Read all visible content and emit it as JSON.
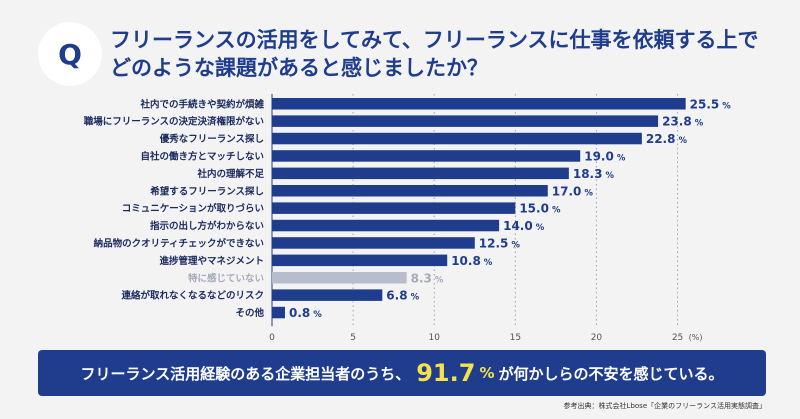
{
  "header": {
    "q_letter": "Q",
    "question_line1": "フリーランスの活用をしてみて、フリーランスに仕事を依頼する上で",
    "question_line2": "どのような課題があると感じましたか？"
  },
  "chart_data": {
    "type": "bar",
    "orientation": "horizontal",
    "categories": [
      "社内での手続きや契約が煩雑",
      "職場にフリーランスの決定決済権限がない",
      "優秀なフリーランス探し",
      "自社の働き方とマッチしない",
      "社内の理解不足",
      "希望するフリーランス探し",
      "コミュニケーションが取りづらい",
      "指示の出し方がわからない",
      "納品物のクオリティチェックができない",
      "進捗管理やマネジメント",
      "特に感じていない",
      "連絡が取れなくなるなどのリスク",
      "その他"
    ],
    "values": [
      25.5,
      23.8,
      22.8,
      19.0,
      18.3,
      17.0,
      15.0,
      14.0,
      12.5,
      10.8,
      8.3,
      6.8,
      0.8
    ],
    "value_labels": [
      "25.5",
      "23.8",
      "22.8",
      "19.0",
      "18.3",
      "17.0",
      "15.0",
      "14.0",
      "12.5",
      "10.8",
      "8.3",
      "6.8",
      "0.8"
    ],
    "highlight_muted_index": 10,
    "unit": "%",
    "x_ticks": [
      "0",
      "5",
      "10",
      "15",
      "20",
      "25"
    ],
    "x_unit_label": "(%)",
    "xlim": [
      0,
      27
    ],
    "grid": true,
    "colors": {
      "bar": "#1f3d8c",
      "bar_muted": "#b7bdcc",
      "label": "#1f3d8c",
      "label_muted": "#a6abb8",
      "grid": "#9aa3bf"
    }
  },
  "summary": {
    "prefix": "フリーランス活用経験のある企業担当者のうち、",
    "highlight": "91.7",
    "highlight_unit": "%",
    "suffix": "が何かしらの不安を感じている。"
  },
  "source": "参考出典：株式会社Lbose「企業のフリーランス活用実態調査」"
}
